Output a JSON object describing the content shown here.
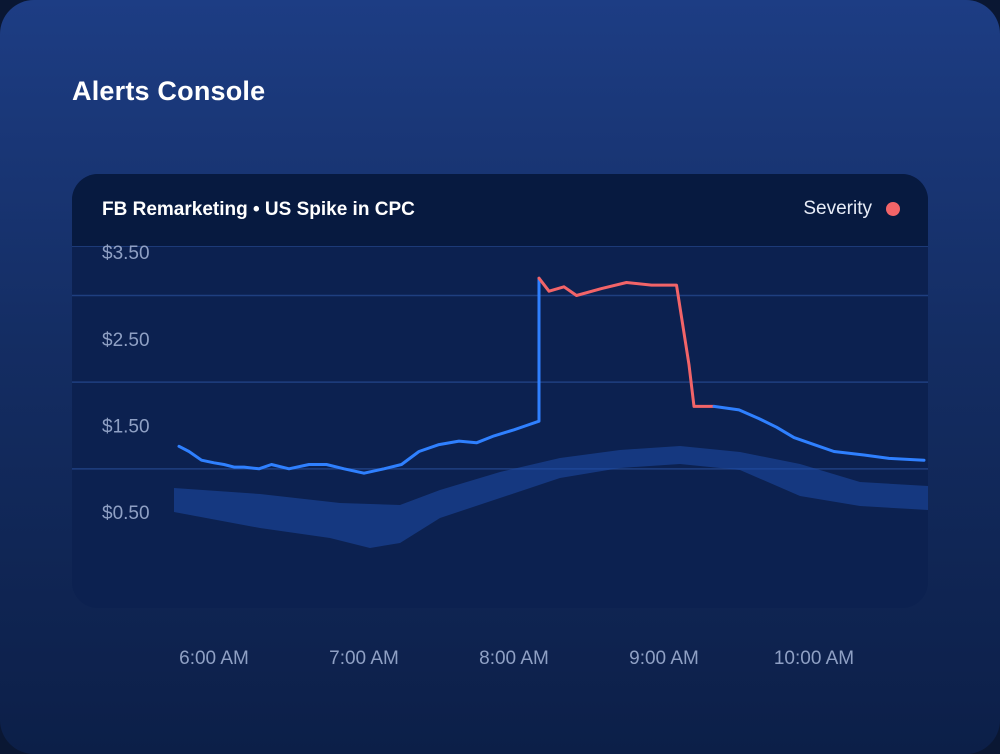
{
  "app": {
    "title": "Alerts Console"
  },
  "card": {
    "title": "FB Remarketing • US Spike in CPC",
    "legend_label": "Severity"
  },
  "colors": {
    "normal": "#2f80ff",
    "alert": "#f26468",
    "band": "#1d4da8",
    "grid": "#1f3f80"
  },
  "chart_data": {
    "type": "line",
    "title": "FB Remarketing • US Spike in CPC",
    "xlabel": "",
    "ylabel": "",
    "x_ticks": [
      "6:00 AM",
      "7:00 AM",
      "8:00 AM",
      "9:00 AM",
      "10:00 AM"
    ],
    "y_ticks": [
      "$3.50",
      "$2.50",
      "$1.50",
      "$0.50"
    ],
    "y_tick_values": [
      3.5,
      2.5,
      1.5,
      0.5
    ],
    "xlim": [
      "5:45 AM",
      "10:45 AM"
    ],
    "ylim": [
      0,
      4.0
    ],
    "grid": true,
    "legend": "top-right",
    "series": [
      {
        "name": "Severity",
        "values": [
          [
            "5:46 AM",
            1.26
          ],
          [
            "5:50 AM",
            1.2
          ],
          [
            "5:55 AM",
            1.1
          ],
          [
            "6:00 AM",
            1.07
          ],
          [
            "6:04 AM",
            1.05
          ],
          [
            "6:08 AM",
            1.02
          ],
          [
            "6:12 AM",
            1.02
          ],
          [
            "6:18 AM",
            1.0
          ],
          [
            "6:23 AM",
            1.05
          ],
          [
            "6:30 AM",
            1.0
          ],
          [
            "6:38 AM",
            1.05
          ],
          [
            "6:45 AM",
            1.05
          ],
          [
            "6:52 AM",
            1.0
          ],
          [
            "7:00 AM",
            0.95
          ],
          [
            "7:08 AM",
            1.0
          ],
          [
            "7:15 AM",
            1.05
          ],
          [
            "7:22 AM",
            1.2
          ],
          [
            "7:30 AM",
            1.28
          ],
          [
            "7:38 AM",
            1.32
          ],
          [
            "7:45 AM",
            1.3
          ],
          [
            "7:52 AM",
            1.38
          ],
          [
            "8:00 AM",
            1.45
          ],
          [
            "8:05 AM",
            1.5
          ],
          [
            "8:10 AM",
            1.55
          ],
          [
            "8:10 AM",
            3.2
          ],
          [
            "8:14 AM",
            3.05
          ],
          [
            "8:20 AM",
            3.1
          ],
          [
            "8:25 AM",
            3.0
          ],
          [
            "8:35 AM",
            3.08
          ],
          [
            "8:45 AM",
            3.15
          ],
          [
            "8:55 AM",
            3.12
          ],
          [
            "9:05 AM",
            3.12
          ],
          [
            "9:10 AM",
            2.2
          ],
          [
            "9:12 AM",
            1.72
          ],
          [
            "9:20 AM",
            1.72
          ],
          [
            "9:30 AM",
            1.68
          ],
          [
            "9:38 AM",
            1.58
          ],
          [
            "9:45 AM",
            1.48
          ],
          [
            "9:52 AM",
            1.36
          ],
          [
            "10:00 AM",
            1.28
          ],
          [
            "10:08 AM",
            1.2
          ],
          [
            "10:20 AM",
            1.16
          ],
          [
            "10:30 AM",
            1.12
          ],
          [
            "10:44 AM",
            1.1
          ]
        ]
      }
    ]
  }
}
